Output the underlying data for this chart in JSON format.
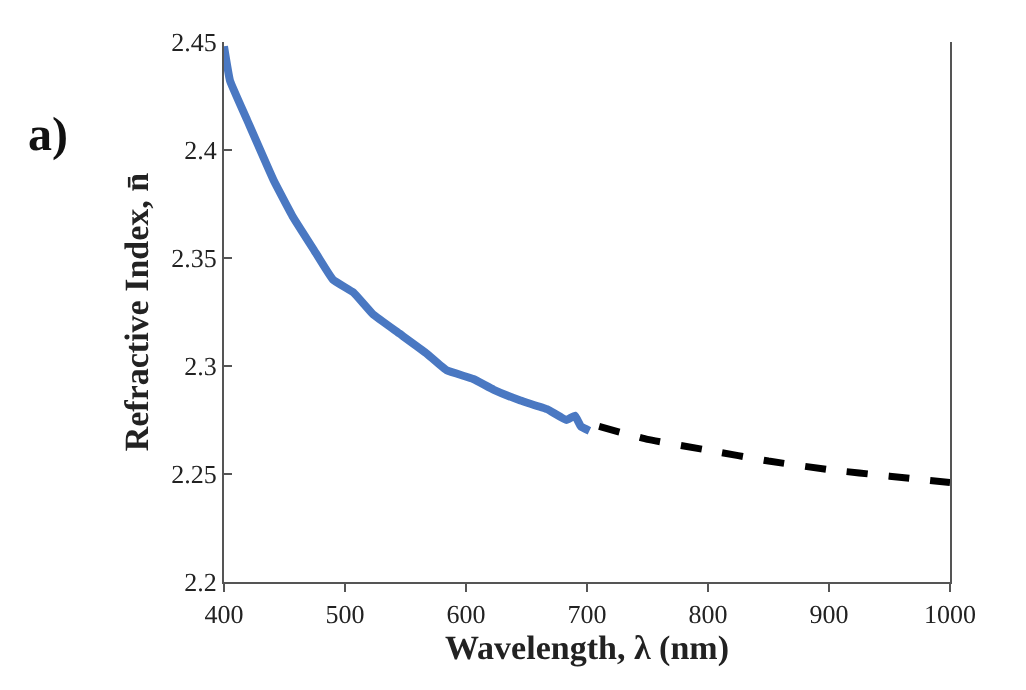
{
  "chart_data": {
    "type": "line",
    "xlabel": "Wavelength, λ (nm)",
    "ylabel": "Refractive Index, n̄",
    "annotations": [
      "a)"
    ],
    "series": [
      {
        "color": "#4a78c2",
        "line_style": "solid",
        "x": [
          400,
          405,
          419,
          441,
          457,
          474,
          490,
          507,
          523,
          545,
          567,
          584,
          606,
          623,
          645,
          667,
          683,
          690,
          695,
          702
        ],
        "values": [
          2.448,
          2.432,
          2.414,
          2.386,
          2.369,
          2.354,
          2.34,
          2.334,
          2.324,
          2.315,
          2.306,
          2.298,
          2.294,
          2.289,
          2.284,
          2.28,
          2.275,
          2.277,
          2.272,
          2.27
        ]
      },
      {
        "color": "#000000",
        "line_style": "dashed",
        "x": [
          710,
          750,
          800,
          850,
          900,
          950,
          1000
        ],
        "values": [
          2.272,
          2.266,
          2.261,
          2.256,
          2.252,
          2.249,
          2.246
        ]
      }
    ],
    "xlim": [
      400,
      1000
    ],
    "xticks": [
      400,
      500,
      600,
      700,
      800,
      900,
      1000
    ],
    "ylim": [
      2.2,
      2.45
    ],
    "yticks": [
      2.2,
      2.25,
      2.3,
      2.35,
      2.4,
      2.45
    ]
  }
}
